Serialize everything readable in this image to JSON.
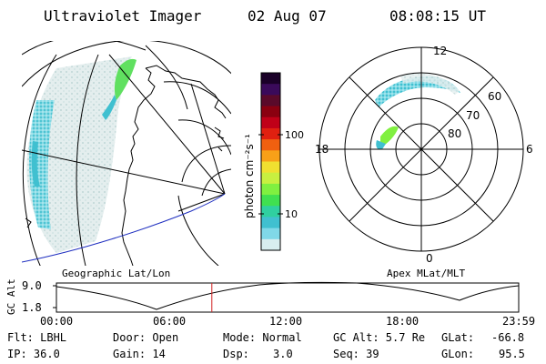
{
  "header": {
    "title": "Ultraviolet Imager",
    "date": "02 Aug 07",
    "time": "08:08:15 UT"
  },
  "colorbar": {
    "unit_label": "photon cm⁻²s⁻¹",
    "ticks": [
      "100",
      "10"
    ],
    "colors": [
      "#1a0028",
      "#3a0a5a",
      "#5a0a2a",
      "#8a0010",
      "#c00018",
      "#e02010",
      "#f06010",
      "#f8a018",
      "#f0e030",
      "#c8f040",
      "#80f040",
      "#40e050",
      "#30d0a0",
      "#40c0d0",
      "#80d8e8",
      "#d8eef0"
    ]
  },
  "left_panel": {
    "label": "Geographic Lat/Lon"
  },
  "right_panel": {
    "label": "Apex MLat/MLT",
    "mlt_labels": {
      "top": "12",
      "left": "18",
      "right": "6",
      "bottom": "0"
    },
    "mlat_labels": [
      "60",
      "70",
      "80"
    ]
  },
  "altitude_plot": {
    "ylabel": "GC Alt",
    "yticks": [
      "9.0",
      "1.8"
    ],
    "xticks": [
      "00:00",
      "06:00",
      "12:00",
      "18:00",
      "23:59"
    ],
    "current_time_fraction": 0.3362
  },
  "info": {
    "filter": "Flt: LBHL",
    "ip": "IP: 36.0",
    "door": "Door: Open",
    "gain": "Gain: 14",
    "mode": "Mode: Normal",
    "dsp_label": "Dsp:",
    "dsp_value": "3.0",
    "gc_alt": "GC Alt: 5.7 Re",
    "seq": "Seq: 39",
    "glat_label": "GLat:",
    "glat_value": "-66.8",
    "glon_label": "GLon:",
    "glon_value": "95.5"
  }
}
